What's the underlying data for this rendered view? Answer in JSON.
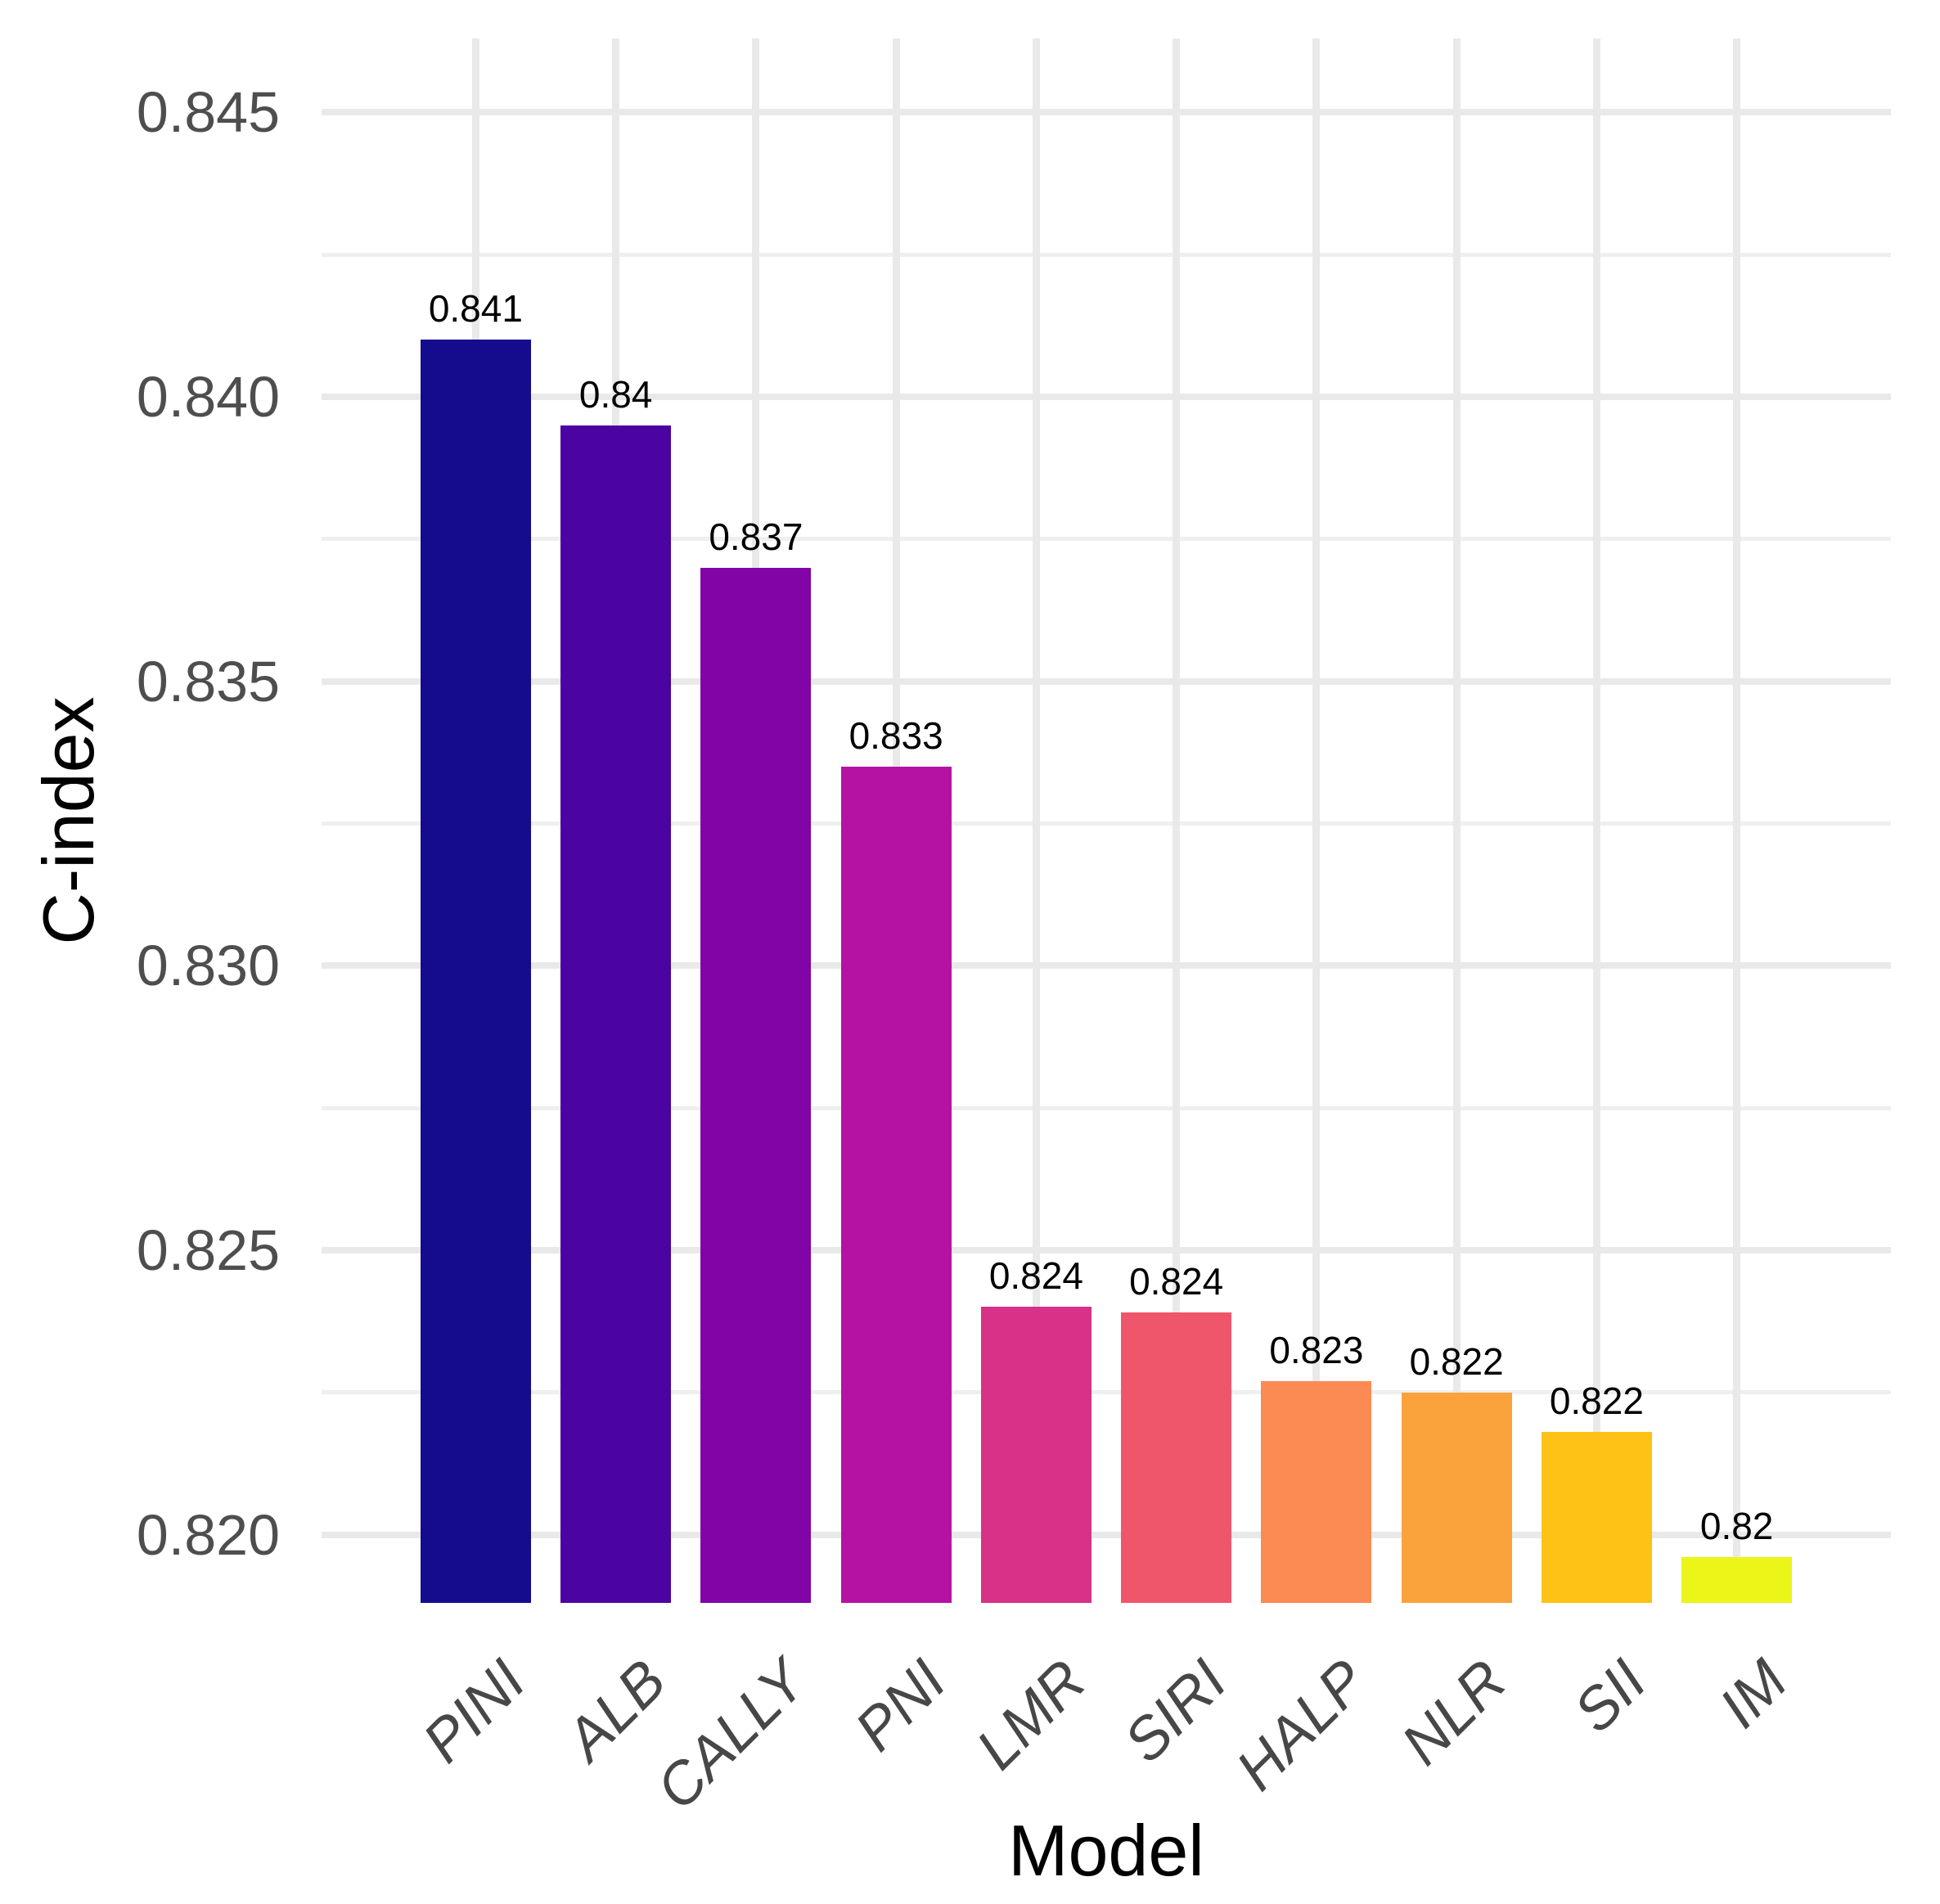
{
  "chart_data": {
    "type": "bar",
    "title": "",
    "xlabel": "Model",
    "ylabel": "C-index",
    "categories": [
      "PINI",
      "ALB",
      "CALLY",
      "PNI",
      "LMR",
      "SIRI",
      "HALP",
      "NLR",
      "SII",
      "IM"
    ],
    "values": [
      0.841,
      0.8395,
      0.837,
      0.8335,
      0.824,
      0.8239,
      0.8227,
      0.8225,
      0.8218,
      0.8196
    ],
    "bar_labels": [
      "0.841",
      "0.84",
      "0.837",
      "0.833",
      "0.824",
      "0.824",
      "0.823",
      "0.822",
      "0.822",
      "0.82"
    ],
    "bar_colors": [
      "#150C8D",
      "#4B03A1",
      "#8104A7",
      "#B512A4",
      "#D73188",
      "#F0566B",
      "#FB8A53",
      "#FAA23C",
      "#FDC215",
      "#EBF518"
    ],
    "ylim": [
      0.8188,
      0.8463
    ],
    "yticks": [
      0.82,
      0.825,
      0.83,
      0.835,
      0.84,
      0.845
    ],
    "ytick_labels": [
      "0.820",
      "0.825",
      "0.830",
      "0.835",
      "0.840",
      "0.845"
    ],
    "minor_yticks": [
      0.8225,
      0.8275,
      0.8325,
      0.8375,
      0.8425
    ],
    "grid": "on",
    "legend": "none",
    "background_color": "#FFFFFF",
    "grid_major_color": "#E9E9E9",
    "grid_minor_color": "#EFEFEF",
    "axis_text_color": "#4E4E4E",
    "axis_title_color": "#000000",
    "bar_label_color": "#000000"
  }
}
